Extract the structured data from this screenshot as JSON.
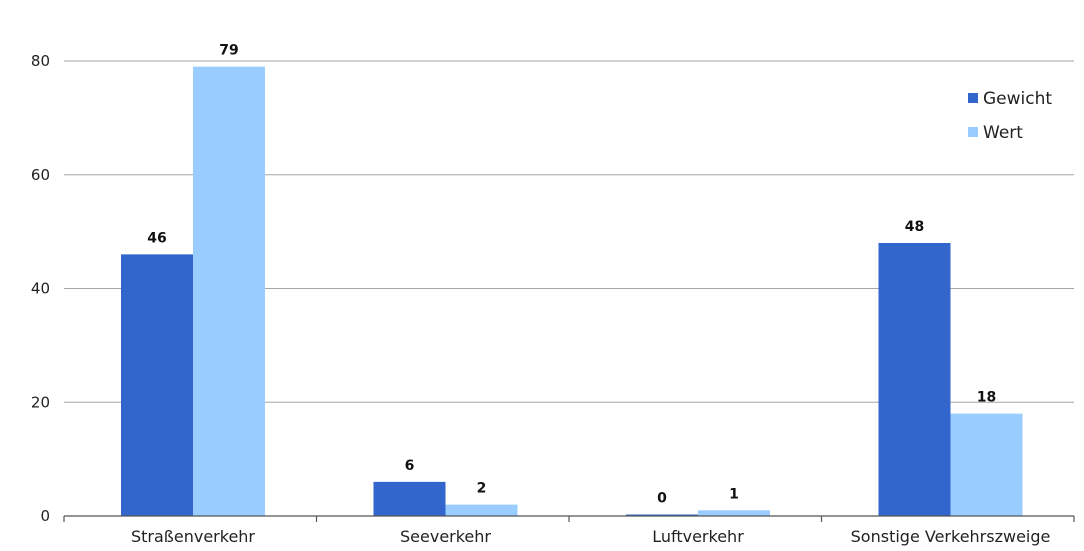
{
  "chart_data": {
    "type": "bar",
    "categories": [
      "Straßenverkehr",
      "Seeverkehr",
      "Luftverkehr",
      "Sonstige Verkehrszweige"
    ],
    "series": [
      {
        "name": "Gewicht",
        "values": [
          46,
          6,
          0,
          48
        ],
        "color": "#3366cc"
      },
      {
        "name": "Wert",
        "values": [
          79,
          2,
          1,
          18
        ],
        "color": "#99ccff"
      }
    ],
    "yticks": [
      0,
      20,
      40,
      60,
      80
    ],
    "ylim": [
      0,
      80
    ],
    "grid": true,
    "legend_position": "top-right"
  }
}
